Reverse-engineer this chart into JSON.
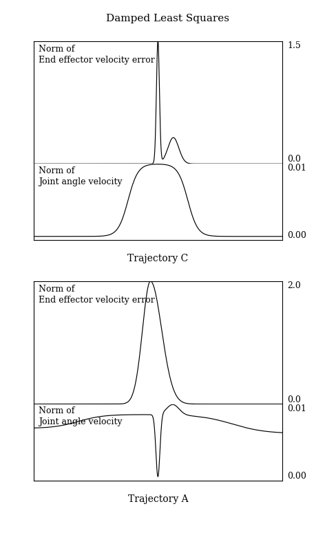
{
  "title": "Damped Least Squares",
  "title_fontsize": 11,
  "label_fontsize": 9,
  "tick_fontsize": 9,
  "xlabel_C": "Trajectory C",
  "xlabel_A": "Trajectory A",
  "subplot1_label": "Norm of\nEnd effector velocity error",
  "subplot2_label": "Norm of\nJoint angle velocity",
  "subplot3_label": "Norm of\nEnd effector velocity error",
  "subplot4_label": "Norm of\nJoint angle velocity",
  "line_color": "#000000",
  "bg_color": "#ffffff",
  "n_points": 2000,
  "fig_width": 4.88,
  "fig_height": 7.94,
  "fig_dpi": 100
}
